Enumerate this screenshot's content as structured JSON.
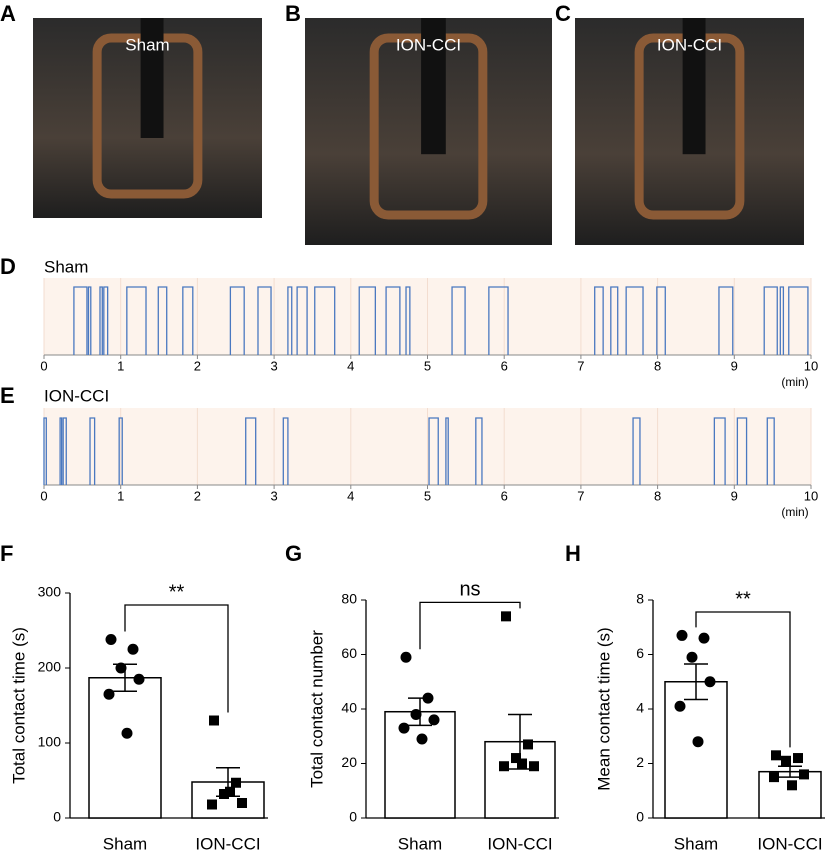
{
  "images": [
    {
      "panel": "A",
      "label": "Sham"
    },
    {
      "panel": "B",
      "label": "ION-CCI"
    },
    {
      "panel": "C",
      "label": "ION-CCI"
    }
  ],
  "chart_data": [
    {
      "type": "timeline",
      "panel": "D",
      "title": "Sham",
      "xlabel": "(min)",
      "color": "#4a78c0",
      "xlim": [
        0,
        10
      ],
      "xticks": [
        0,
        1,
        2,
        3,
        4,
        5,
        6,
        7,
        8,
        9,
        10
      ],
      "intervals": [
        [
          0.39,
          0.56
        ],
        [
          0.58,
          0.61
        ],
        [
          0.73,
          0.76
        ],
        [
          0.78,
          0.83
        ],
        [
          1.08,
          1.33
        ],
        [
          1.49,
          1.6
        ],
        [
          1.81,
          1.94
        ],
        [
          2.43,
          2.61
        ],
        [
          2.79,
          2.96
        ],
        [
          3.18,
          3.23
        ],
        [
          3.3,
          3.43
        ],
        [
          3.53,
          3.79
        ],
        [
          4.11,
          4.32
        ],
        [
          4.46,
          4.64
        ],
        [
          4.72,
          4.77
        ],
        [
          5.32,
          5.49
        ],
        [
          5.8,
          6.05
        ],
        [
          7.18,
          7.29
        ],
        [
          7.39,
          7.48
        ],
        [
          7.59,
          7.81
        ],
        [
          7.99,
          8.1
        ],
        [
          8.8,
          8.98
        ],
        [
          9.39,
          9.56
        ],
        [
          9.6,
          9.64
        ],
        [
          9.71,
          9.96
        ]
      ]
    },
    {
      "type": "timeline",
      "panel": "E",
      "title": "ION-CCI",
      "xlabel": "(min)",
      "color": "#4a78c0",
      "xlim": [
        0,
        10
      ],
      "xticks": [
        0,
        1,
        2,
        3,
        4,
        5,
        6,
        7,
        8,
        9,
        10
      ],
      "intervals": [
        [
          0.0,
          0.03
        ],
        [
          0.21,
          0.23
        ],
        [
          0.25,
          0.29
        ],
        [
          0.6,
          0.66
        ],
        [
          0.98,
          1.02
        ],
        [
          2.63,
          2.76
        ],
        [
          3.12,
          3.18
        ],
        [
          5.02,
          5.14
        ],
        [
          5.24,
          5.27
        ],
        [
          5.63,
          5.71
        ],
        [
          7.68,
          7.77
        ],
        [
          8.74,
          8.88
        ],
        [
          9.04,
          9.16
        ],
        [
          9.43,
          9.52
        ]
      ]
    },
    {
      "type": "bar",
      "panel": "F",
      "ylabel": "Total contact time (s)",
      "significance": "**",
      "categories": [
        "Sham",
        "ION-CCI"
      ],
      "values": [
        187,
        48
      ],
      "errors": [
        18,
        19
      ],
      "points": [
        [
          238,
          225,
          200,
          185,
          165,
          113
        ],
        [
          130,
          47,
          32,
          20,
          18,
          35
        ]
      ],
      "ylim": [
        0,
        300
      ],
      "yticks": [
        0,
        100,
        200,
        300
      ]
    },
    {
      "type": "bar",
      "panel": "G",
      "ylabel": "Total contact number",
      "significance": "ns",
      "categories": [
        "Sham",
        "ION-CCI"
      ],
      "values": [
        39,
        28
      ],
      "errors": [
        5,
        10
      ],
      "points": [
        [
          59,
          44,
          38,
          36,
          33,
          29
        ],
        [
          74,
          27,
          22,
          19,
          19,
          20
        ]
      ],
      "ylim": [
        0,
        80
      ],
      "yticks": [
        0,
        20,
        40,
        60,
        80
      ]
    },
    {
      "type": "bar",
      "panel": "H",
      "ylabel": "Mean contact time (s)",
      "significance": "**",
      "categories": [
        "Sham",
        "ION-CCI"
      ],
      "values": [
        5.0,
        1.7
      ],
      "errors": [
        0.65,
        0.2
      ],
      "points": [
        [
          6.7,
          6.6,
          5.9,
          5.0,
          4.1,
          2.8
        ],
        [
          2.3,
          2.2,
          2.1,
          1.6,
          1.5,
          1.2
        ]
      ],
      "ylim": [
        0,
        8
      ],
      "yticks": [
        0,
        2,
        4,
        6,
        8
      ]
    }
  ]
}
